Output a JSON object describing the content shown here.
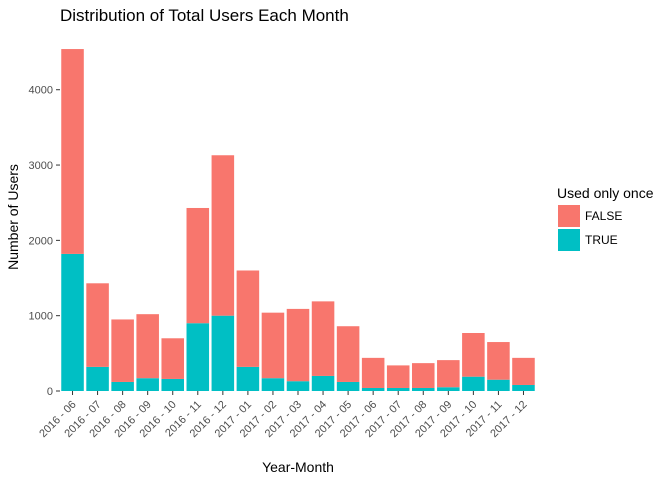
{
  "chart_data": {
    "type": "bar",
    "stacked": true,
    "title": "Distribution of Total Users Each Month",
    "xlabel": "Year-Month",
    "ylabel": "Number of Users",
    "ylim": [
      0,
      4700
    ],
    "yticks": [
      0,
      1000,
      2000,
      3000,
      4000
    ],
    "grid": false,
    "legend": {
      "title": "Used only once",
      "position": "right",
      "entries": [
        {
          "label": "FALSE",
          "color": "#F8766D"
        },
        {
          "label": "TRUE",
          "color": "#00BFC4"
        }
      ]
    },
    "categories": [
      "2016 - 06",
      "2016 - 07",
      "2016 - 08",
      "2016 - 09",
      "2016 - 10",
      "2016 - 11",
      "2016 - 12",
      "2017 - 01",
      "2017 - 02",
      "2017 - 03",
      "2017 - 04",
      "2017 - 05",
      "2017 - 06",
      "2017 - 07",
      "2017 - 08",
      "2017 - 09",
      "2017 - 10",
      "2017 - 11",
      "2017 - 12"
    ],
    "series": [
      {
        "name": "TRUE",
        "color": "#00BFC4",
        "values": [
          1820,
          320,
          120,
          170,
          160,
          900,
          1000,
          320,
          170,
          130,
          200,
          120,
          40,
          40,
          40,
          50,
          190,
          150,
          80
        ]
      },
      {
        "name": "FALSE",
        "color": "#F8766D",
        "values": [
          2720,
          1110,
          830,
          850,
          540,
          1530,
          2130,
          1280,
          870,
          960,
          990,
          740,
          400,
          300,
          330,
          360,
          580,
          500,
          360
        ]
      }
    ]
  }
}
